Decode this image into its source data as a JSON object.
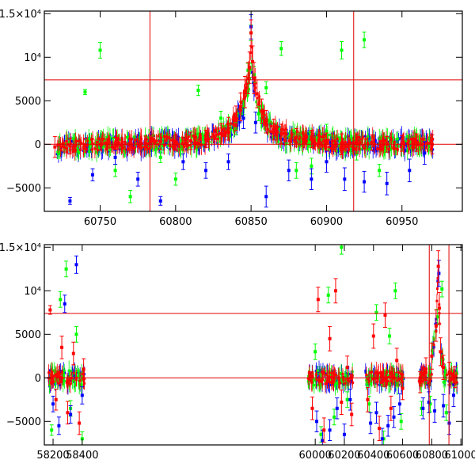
{
  "chart_data": [
    {
      "type": "scatter",
      "name": "top-panel",
      "title": "",
      "xlabel": "",
      "ylabel": "",
      "xlim": [
        60713,
        60990
      ],
      "ylim": [
        -7700,
        15300
      ],
      "x_ticks": [
        60750,
        60800,
        60850,
        60900,
        60950
      ],
      "y_ticks": [
        -5000,
        0,
        5000,
        10000,
        15000
      ],
      "x_tick_labels": [
        "60750",
        "60800",
        "60850",
        "60900",
        "60950"
      ],
      "y_tick_labels": [
        "−5000",
        "0",
        "5000",
        "10⁴",
        "1.5×10⁴"
      ],
      "hlines": [
        7400,
        0
      ],
      "vlines": [
        60783,
        60918
      ],
      "grid": false,
      "series": [
        {
          "color": "#ff0000",
          "x": [
            60720,
            60730,
            60740,
            60750,
            60760,
            60770,
            60780,
            60790,
            60800,
            60810,
            60820,
            60830,
            60835,
            60840,
            60843,
            60846,
            60848,
            60849,
            60850,
            60851,
            60852,
            60854,
            60857,
            60860,
            60865,
            60870,
            60880,
            60890,
            60900,
            60910,
            60920,
            60930,
            60940,
            60950,
            60960,
            60970
          ],
          "y": [
            -300,
            -200,
            -100,
            0,
            100,
            0,
            150,
            300,
            200,
            400,
            600,
            1200,
            1800,
            3000,
            4300,
            6000,
            7600,
            8800,
            12800,
            9500,
            7600,
            5800,
            3800,
            2600,
            1700,
            1200,
            800,
            600,
            300,
            0,
            100,
            200,
            0,
            100,
            200,
            0
          ],
          "err": [
            1200,
            900,
            800,
            700,
            700,
            700,
            800,
            900,
            900,
            1000,
            1000,
            1200,
            1300,
            1400,
            1600,
            1800,
            1800,
            1800,
            1500,
            1800,
            1800,
            1600,
            1400,
            1300,
            1200,
            1100,
            1000,
            1000,
            1000,
            1200,
            1100,
            900,
            900,
            900,
            1000,
            1100
          ]
        },
        {
          "color": "#00ff00",
          "x": [
            60740,
            60750,
            60760,
            60770,
            60790,
            60800,
            60815,
            60830,
            60840,
            60845,
            60848,
            60850,
            60852,
            60855,
            60860,
            60870,
            60880,
            60890,
            60900,
            60910,
            60920,
            60925,
            60935
          ],
          "y": [
            6000,
            10800,
            -3000,
            -6000,
            -1500,
            -4000,
            6200,
            3000,
            1800,
            4200,
            8500,
            12800,
            8000,
            3500,
            6500,
            11000,
            -3000,
            -2500,
            1500,
            10800,
            -1000,
            12000,
            -3000
          ],
          "err": [
            300,
            900,
            700,
            700,
            600,
            700,
            600,
            800,
            700,
            800,
            800,
            900,
            900,
            800,
            700,
            800,
            900,
            900,
            800,
            1000,
            800,
            900,
            700
          ]
        },
        {
          "color": "#0000ff",
          "x": [
            60730,
            60745,
            60760,
            60775,
            60790,
            60805,
            60820,
            60835,
            60845,
            60850,
            60853,
            60860,
            60875,
            60890,
            60900,
            60912,
            60925,
            60940,
            60955,
            60965
          ],
          "y": [
            -6500,
            -3500,
            -1500,
            -4000,
            -6500,
            -2000,
            -3000,
            -2000,
            3000,
            13500,
            2500,
            -6000,
            -3000,
            -4000,
            -2000,
            -4000,
            -4300,
            -4500,
            -3000,
            -1000
          ],
          "err": [
            400,
            700,
            800,
            800,
            500,
            900,
            900,
            900,
            1200,
            1400,
            1200,
            1200,
            1200,
            1200,
            1200,
            1300,
            1200,
            1300,
            1300,
            1300
          ]
        }
      ]
    },
    {
      "type": "scatter",
      "name": "bottom-panel",
      "title": "",
      "xlabel": "",
      "ylabel": "",
      "xlim": [
        58140,
        61010
      ],
      "ylim": [
        -7700,
        15300
      ],
      "x_ticks": [
        58200,
        58400,
        60000,
        60200,
        60400,
        60600,
        60800,
        61000
      ],
      "y_ticks": [
        -5000,
        0,
        5000,
        10000,
        15000
      ],
      "x_tick_labels": [
        "58200",
        "58400",
        "60000",
        "60200",
        "60400",
        "60600",
        "60800",
        "61000"
      ],
      "y_tick_labels": [
        "−5000",
        "0",
        "5000",
        "10⁴",
        "1.5×10⁴"
      ],
      "hlines": [
        7400,
        0
      ],
      "vlines": [
        60783,
        60918
      ],
      "grid": false,
      "segments": [
        [
          58170,
          58420
        ],
        [
          59950,
          60260
        ],
        [
          60345,
          60610
        ],
        [
          60710,
          60975
        ]
      ],
      "series": [
        {
          "color": "#ff0000",
          "x": [
            58180,
            58220,
            58260,
            58300,
            58340,
            58380,
            58410,
            59980,
            60020,
            60060,
            60100,
            60140,
            60180,
            60220,
            60250,
            60360,
            60400,
            60440,
            60480,
            60520,
            60560,
            60600,
            60720,
            60760,
            60800,
            60830,
            60845,
            60852,
            60860,
            60880,
            60920,
            60960
          ],
          "y": [
            7800,
            -2500,
            3500,
            -4000,
            2800,
            -5200,
            1000,
            -3500,
            9000,
            -6000,
            4500,
            10000,
            -2800,
            1200,
            -4200,
            -2500,
            4800,
            -5800,
            7200,
            -3500,
            2000,
            -1200,
            -500,
            1000,
            2500,
            6000,
            12800,
            8000,
            3000,
            1200,
            500,
            100
          ],
          "err": [
            500,
            1200,
            1300,
            1300,
            1300,
            1300,
            1200,
            1300,
            1400,
            1400,
            1400,
            1400,
            1400,
            1300,
            1300,
            1400,
            1400,
            1400,
            1400,
            1400,
            1400,
            1300,
            1200,
            1300,
            1500,
            1800,
            1800,
            1800,
            1600,
            1400,
            1300,
            1200
          ]
        },
        {
          "color": "#00ff00",
          "x": [
            58190,
            58250,
            58290,
            58320,
            58360,
            58400,
            60000,
            60040,
            60090,
            60130,
            60180,
            60220,
            60370,
            60420,
            60470,
            60510,
            60550,
            60590,
            60730,
            60790,
            60840,
            60870,
            60900
          ],
          "y": [
            -6000,
            9000,
            12500,
            -3500,
            5000,
            -7000,
            3000,
            -6500,
            9500,
            -4500,
            15000,
            -2500,
            -3000,
            7500,
            -7000,
            4800,
            10000,
            -5000,
            -3500,
            -3000,
            7000,
            10200,
            -4000
          ],
          "err": [
            600,
            900,
            900,
            900,
            900,
            800,
            900,
            900,
            900,
            900,
            800,
            900,
            900,
            900,
            900,
            900,
            900,
            900,
            800,
            900,
            900,
            900,
            900
          ]
        },
        {
          "color": "#0000ff",
          "x": [
            58200,
            58240,
            58280,
            58320,
            58360,
            58400,
            60010,
            60050,
            60100,
            60150,
            60200,
            60240,
            60380,
            60420,
            60460,
            60500,
            60540,
            60580,
            60740,
            60780,
            60820,
            60849,
            60880,
            60920,
            60950
          ],
          "y": [
            -3000,
            -5500,
            8500,
            -4200,
            13000,
            -2000,
            -5000,
            -7200,
            -6000,
            -3500,
            -6500,
            -2500,
            -5200,
            -4000,
            -7000,
            -5500,
            -4500,
            -3000,
            -3500,
            -2800,
            -3800,
            12000,
            -3200,
            -5200,
            -2000
          ],
          "err": [
            900,
            1000,
            1000,
            1000,
            1000,
            1000,
            1200,
            1200,
            1200,
            1200,
            1200,
            1200,
            1200,
            1200,
            1200,
            1200,
            1200,
            1200,
            1200,
            1200,
            1300,
            1500,
            1300,
            1300,
            1300
          ]
        }
      ]
    }
  ]
}
